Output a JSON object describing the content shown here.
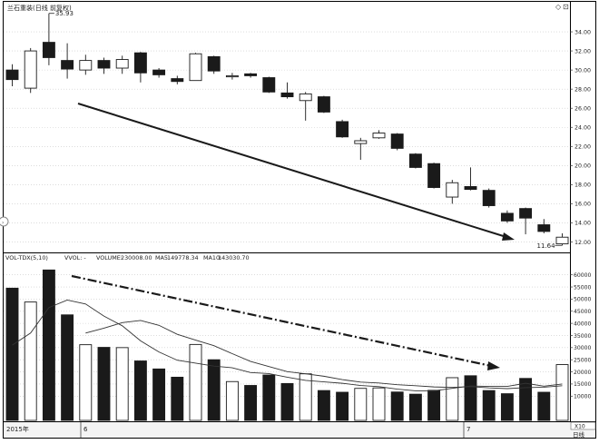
{
  "header": {
    "title": "兰石重装(日线 前复权)",
    "corner_icons": [
      "◇",
      "⊡"
    ]
  },
  "volume_legend": {
    "indicator": "VOL-TDX(5,10)",
    "vvol": "VVOL: -",
    "volume_label": "VOLUME:",
    "volume_value": "230008.00",
    "ma5_label": "MA5:",
    "ma5_value": "149778.34",
    "ma10_label": "MA10:",
    "ma10_value": "143030.70"
  },
  "x_axis_labels": {
    "year": "2015年",
    "month_a": "6",
    "month_b": "7",
    "right_box": "X10",
    "period": "日线"
  },
  "colors": {
    "down_fill": "#1a1a1a",
    "up_fill": "#ffffff",
    "grid": "#c8c8c8",
    "trend_arrow": "#1a1a1a"
  },
  "chart_data": [
    {
      "type": "candlestick",
      "title": "兰石重装(日线 前复权)",
      "ylim": [
        11.0,
        36.0
      ],
      "yticks": [
        "12.00",
        "14.00",
        "16.00",
        "18.00",
        "20.00",
        "22.00",
        "24.00",
        "26.00",
        "28.00",
        "30.00",
        "32.00",
        "34.00"
      ],
      "high_label": "35.93",
      "low_label": "11.64",
      "candles": [
        {
          "open": 30.0,
          "close": 29.0,
          "high": 30.6,
          "low": 28.3
        },
        {
          "open": 28.1,
          "close": 32.0,
          "high": 32.3,
          "low": 27.6
        },
        {
          "open": 32.9,
          "close": 31.3,
          "high": 35.93,
          "low": 30.5
        },
        {
          "open": 31.0,
          "close": 30.1,
          "high": 32.8,
          "low": 29.1
        },
        {
          "open": 30.0,
          "close": 31.0,
          "high": 31.6,
          "low": 29.5
        },
        {
          "open": 31.0,
          "close": 30.2,
          "high": 31.3,
          "low": 29.6
        },
        {
          "open": 30.2,
          "close": 31.1,
          "high": 31.5,
          "low": 29.6
        },
        {
          "open": 31.8,
          "close": 29.7,
          "high": 31.9,
          "low": 28.7
        },
        {
          "open": 30.0,
          "close": 29.5,
          "high": 30.2,
          "low": 29.2
        },
        {
          "open": 29.1,
          "close": 28.8,
          "high": 29.4,
          "low": 28.5
        },
        {
          "open": 28.9,
          "close": 31.7,
          "high": 31.8,
          "low": 28.9
        },
        {
          "open": 31.4,
          "close": 29.9,
          "high": 31.5,
          "low": 29.6
        },
        {
          "open": 29.3,
          "close": 29.4,
          "high": 29.7,
          "low": 29.0
        },
        {
          "open": 29.6,
          "close": 29.4,
          "high": 29.7,
          "low": 29.2
        },
        {
          "open": 29.2,
          "close": 27.7,
          "high": 29.3,
          "low": 27.6
        },
        {
          "open": 27.6,
          "close": 27.2,
          "high": 28.7,
          "low": 27.0
        },
        {
          "open": 26.8,
          "close": 27.5,
          "high": 27.7,
          "low": 24.7
        },
        {
          "open": 27.2,
          "close": 25.6,
          "high": 27.3,
          "low": 25.5
        },
        {
          "open": 24.6,
          "close": 23.0,
          "high": 24.8,
          "low": 22.9
        },
        {
          "open": 22.3,
          "close": 22.6,
          "high": 22.9,
          "low": 20.6
        },
        {
          "open": 22.9,
          "close": 23.4,
          "high": 23.7,
          "low": 22.8
        },
        {
          "open": 23.3,
          "close": 21.8,
          "high": 23.4,
          "low": 21.6
        },
        {
          "open": 21.2,
          "close": 19.8,
          "high": 21.3,
          "low": 19.7
        },
        {
          "open": 20.2,
          "close": 17.7,
          "high": 20.3,
          "low": 17.6
        },
        {
          "open": 16.7,
          "close": 18.2,
          "high": 18.5,
          "low": 16.0
        },
        {
          "open": 17.8,
          "close": 17.5,
          "high": 19.8,
          "low": 17.4
        },
        {
          "open": 17.4,
          "close": 15.8,
          "high": 17.6,
          "low": 15.6
        },
        {
          "open": 15.0,
          "close": 14.2,
          "high": 15.3,
          "low": 14.0
        },
        {
          "open": 15.5,
          "close": 14.5,
          "high": 15.6,
          "low": 12.8
        },
        {
          "open": 13.8,
          "close": 13.1,
          "high": 14.4,
          "low": 12.9
        },
        {
          "open": 11.8,
          "close": 12.5,
          "high": 12.9,
          "low": 11.64
        }
      ]
    },
    {
      "type": "bar",
      "ylim": [
        0,
        64000
      ],
      "yticks": [
        "10000",
        "15000",
        "20000",
        "25000",
        "30000",
        "35000",
        "40000",
        "45000",
        "50000",
        "55000",
        "60000"
      ],
      "values": [
        54500,
        48800,
        62000,
        43500,
        31200,
        30100,
        30000,
        24500,
        21200,
        17800,
        31300,
        25000,
        16000,
        14400,
        18700,
        15200,
        19200,
        12300,
        11600,
        13200,
        13400,
        11700,
        10800,
        12400,
        17600,
        18400,
        12300,
        11000,
        17300,
        11600,
        23000
      ],
      "up": [
        false,
        true,
        false,
        false,
        true,
        false,
        true,
        false,
        false,
        false,
        true,
        false,
        true,
        false,
        false,
        false,
        true,
        false,
        false,
        true,
        true,
        false,
        false,
        false,
        true,
        false,
        false,
        false,
        false,
        false,
        true
      ],
      "series": [
        {
          "name": "MA5",
          "values": [
            31000,
            36000,
            46500,
            49600,
            48000,
            43000,
            39000,
            32800,
            28200,
            24800,
            23600,
            22400,
            21700,
            19700,
            19300,
            17800,
            16500,
            15900,
            15300,
            14400,
            13900,
            12900,
            12200,
            12200,
            13200,
            14200,
            14000,
            14000,
            15300,
            14100,
            15000
          ]
        },
        {
          "name": "MA10",
          "values": [
            null,
            null,
            null,
            null,
            36000,
            38000,
            40300,
            41200,
            39200,
            35500,
            33100,
            30800,
            27500,
            24300,
            22200,
            20100,
            19200,
            18200,
            16800,
            15800,
            15400,
            14700,
            14300,
            13800,
            13600,
            13900,
            13400,
            13100,
            13500,
            13700,
            14300
          ]
        }
      ]
    }
  ]
}
